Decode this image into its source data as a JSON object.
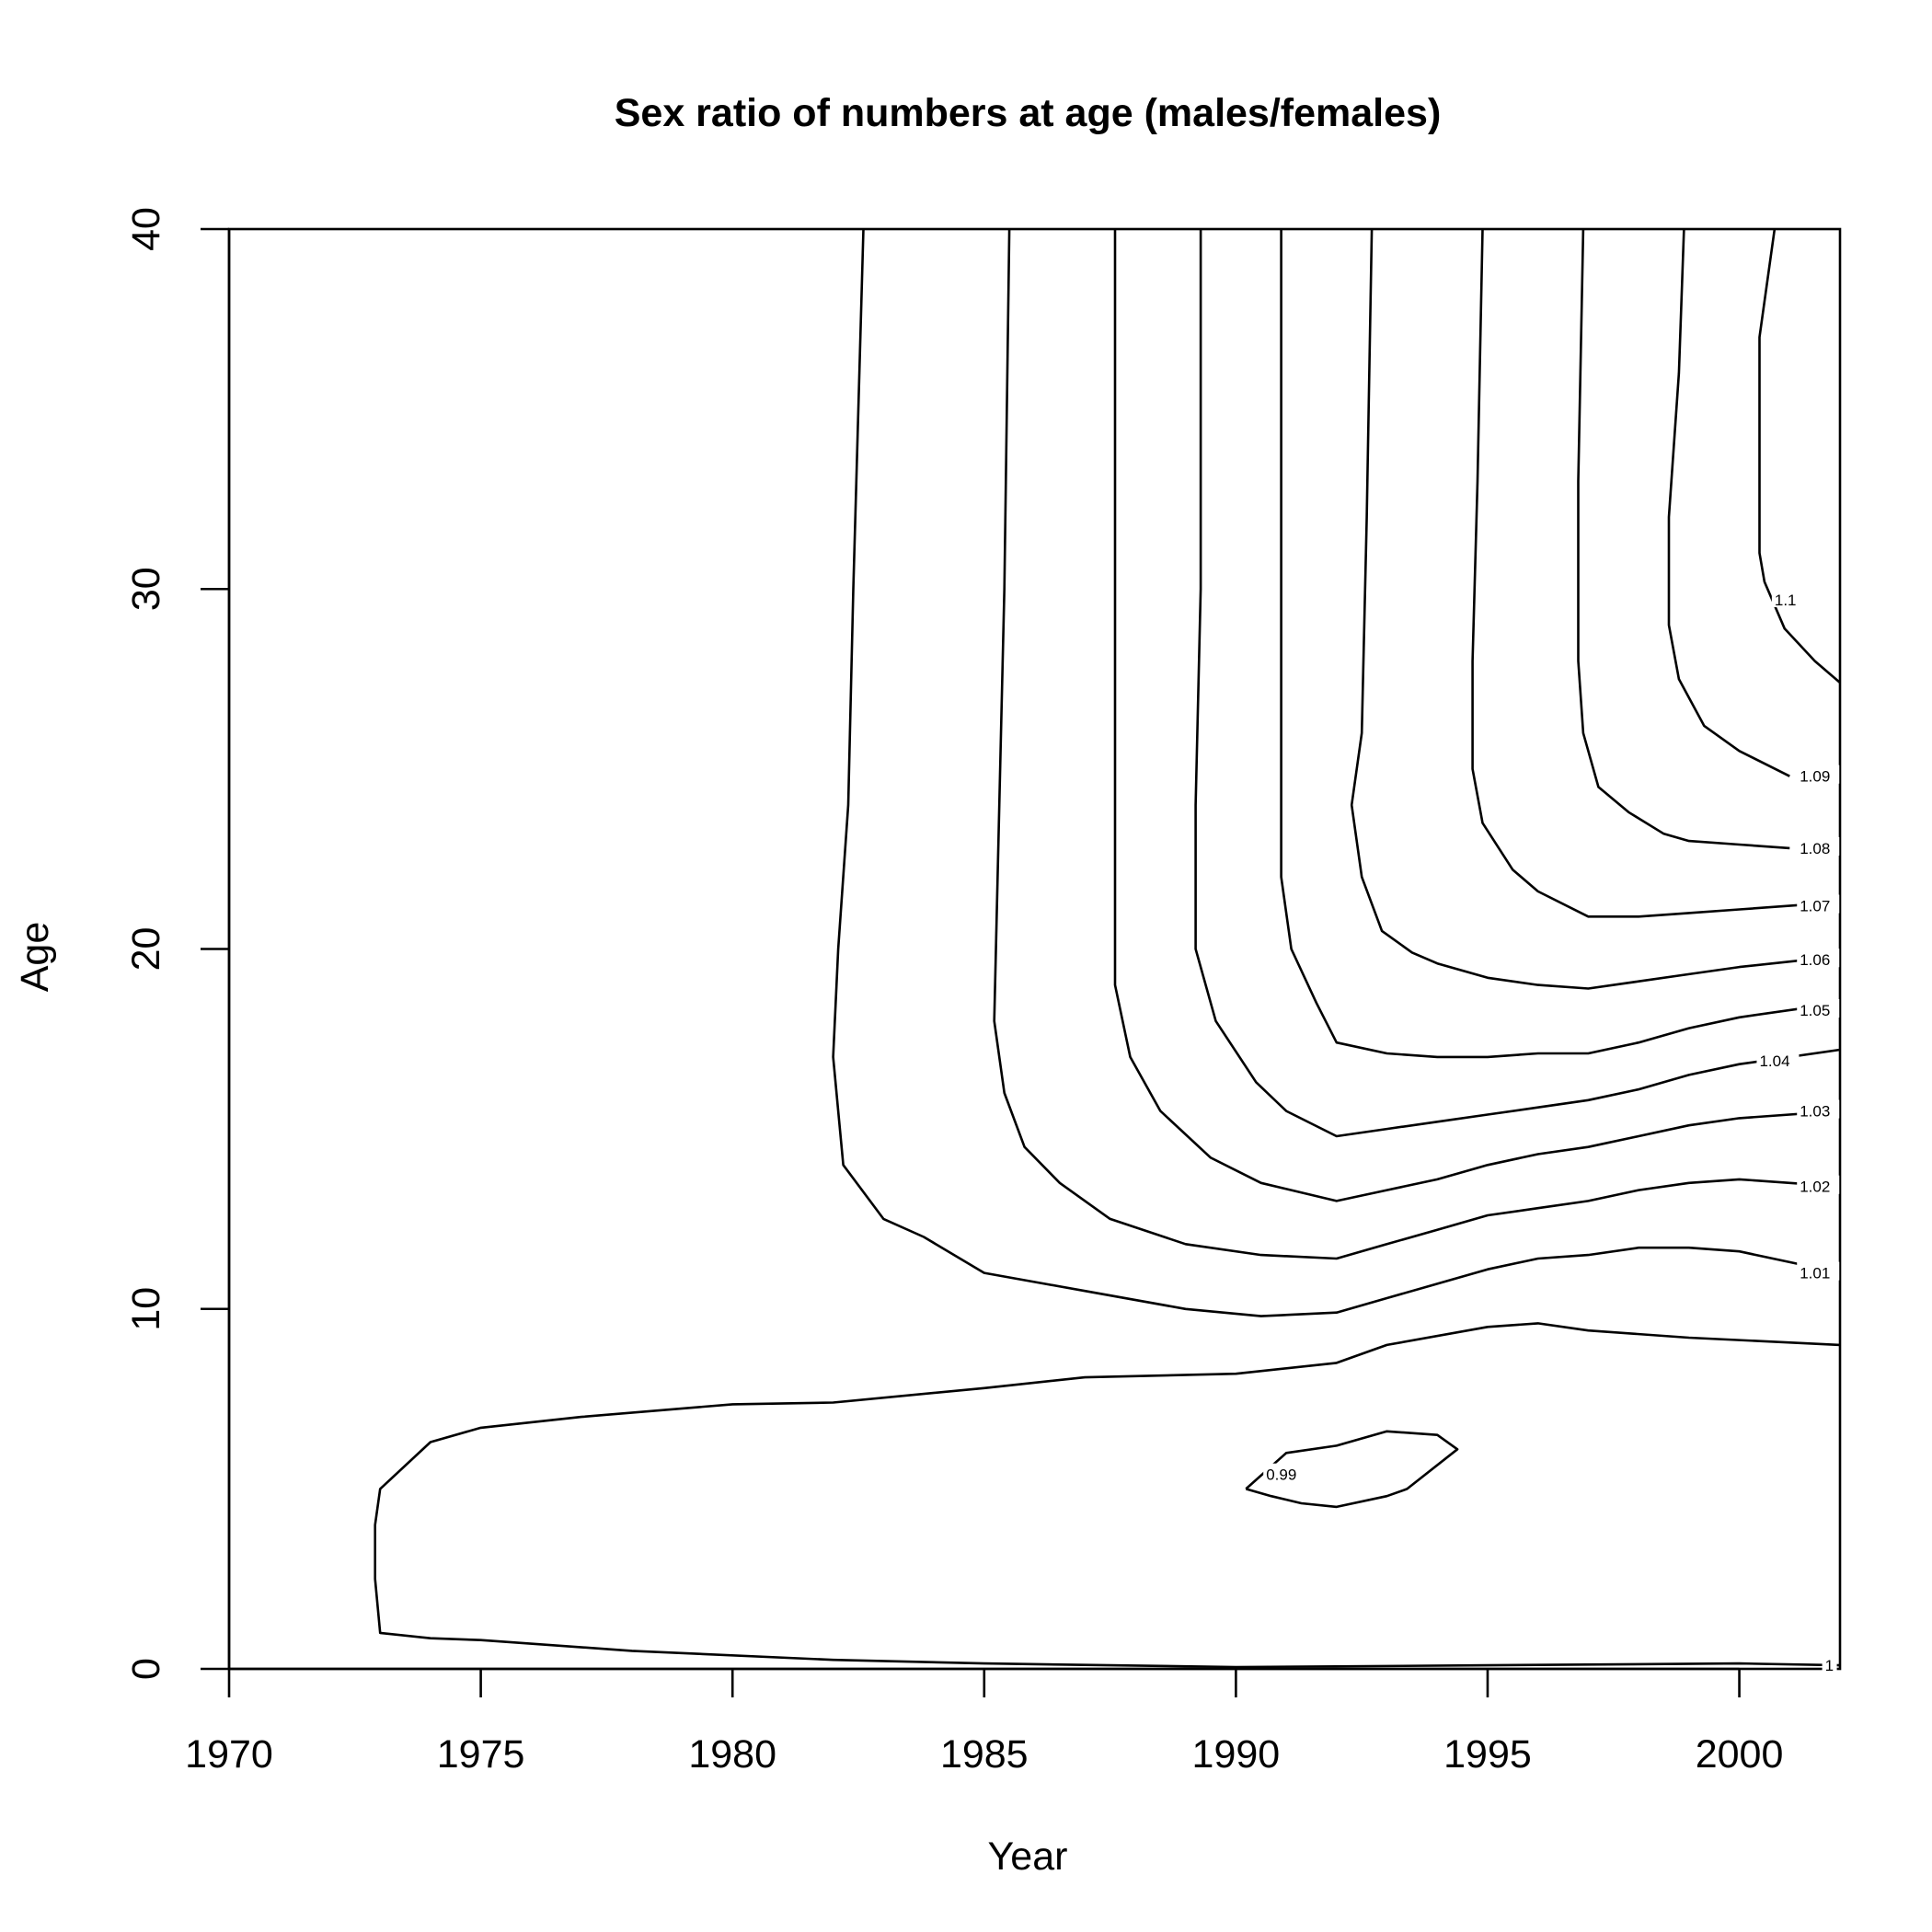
{
  "chart_data": {
    "type": "contour",
    "title": "Sex ratio of numbers at age (males/females)",
    "xlabel": "Year",
    "ylabel": "Age",
    "xlim": [
      1970,
      2002
    ],
    "ylim": [
      0,
      40
    ],
    "x_ticks": [
      1970,
      1975,
      1980,
      1985,
      1990,
      1995,
      2000
    ],
    "y_ticks": [
      0,
      10,
      20,
      30,
      40
    ],
    "contours": [
      {
        "level": "1",
        "label": "1",
        "label_at": [
          2001.7,
          0.1
        ],
        "points": [
          [
            2002,
            0.1
          ],
          [
            2000,
            0.15
          ],
          [
            1995,
            0.1
          ],
          [
            1990,
            0.05
          ],
          [
            1985,
            0.15
          ],
          [
            1982,
            0.25
          ],
          [
            1978,
            0.5
          ],
          [
            1975,
            0.8
          ],
          [
            1974,
            0.85
          ],
          [
            1973,
            1.0
          ],
          [
            1972.9,
            2.5
          ],
          [
            1972.9,
            4.0
          ],
          [
            1973,
            5.0
          ],
          [
            1974,
            6.3
          ],
          [
            1975,
            6.7
          ],
          [
            1977,
            7.0
          ],
          [
            1980,
            7.35
          ],
          [
            1982,
            7.4
          ],
          [
            1985,
            7.8
          ],
          [
            1987,
            8.1
          ],
          [
            1990,
            8.2
          ],
          [
            1992,
            8.5
          ],
          [
            1993,
            9.0
          ],
          [
            1995,
            9.5
          ],
          [
            1996,
            9.6
          ],
          [
            1997,
            9.4
          ],
          [
            1999,
            9.2
          ],
          [
            2002,
            9.0
          ]
        ]
      },
      {
        "level": "0.99",
        "label": "0.99",
        "label_at": [
          1990.6,
          5.4
        ],
        "points": [
          [
            1990.2,
            5.0
          ],
          [
            1991,
            6.0
          ],
          [
            1992,
            6.2
          ],
          [
            1993,
            6.6
          ],
          [
            1994,
            6.5
          ],
          [
            1994.4,
            6.1
          ],
          [
            1993.4,
            5.0
          ],
          [
            1993,
            4.8
          ],
          [
            1992,
            4.5
          ],
          [
            1991.3,
            4.6
          ],
          [
            1990.7,
            4.8
          ],
          [
            1990.2,
            5.0
          ]
        ]
      },
      {
        "level": "1.01",
        "label": "1.01",
        "label_at": [
          2001.2,
          11.0
        ],
        "points": [
          [
            1982.6,
            40
          ],
          [
            1982.4,
            30
          ],
          [
            1982.3,
            24
          ],
          [
            1982.1,
            20
          ],
          [
            1982.0,
            17
          ],
          [
            1982.2,
            14
          ],
          [
            1983,
            12.5
          ],
          [
            1983.8,
            12
          ],
          [
            1985,
            11
          ],
          [
            1987,
            10.5
          ],
          [
            1989,
            10.0
          ],
          [
            1990.5,
            9.8
          ],
          [
            1992,
            9.9
          ],
          [
            1993,
            10.3
          ],
          [
            1994,
            10.7
          ],
          [
            1995,
            11.1
          ],
          [
            1996,
            11.4
          ],
          [
            1997,
            11.5
          ],
          [
            1998,
            11.7
          ],
          [
            1999,
            11.7
          ],
          [
            2000,
            11.6
          ],
          [
            2001,
            11.3
          ],
          [
            2002,
            11.0
          ]
        ]
      },
      {
        "level": "1.02",
        "label": "1.02",
        "label_at": [
          2001.2,
          13.4
        ],
        "points": [
          [
            1985.5,
            40
          ],
          [
            1985.4,
            30
          ],
          [
            1985.3,
            24
          ],
          [
            1985.2,
            18
          ],
          [
            1985.4,
            16
          ],
          [
            1985.8,
            14.5
          ],
          [
            1986.5,
            13.5
          ],
          [
            1987.5,
            12.5
          ],
          [
            1989,
            11.8
          ],
          [
            1990.5,
            11.5
          ],
          [
            1992,
            11.4
          ],
          [
            1993,
            11.8
          ],
          [
            1994,
            12.2
          ],
          [
            1995,
            12.6
          ],
          [
            1996,
            12.8
          ],
          [
            1997,
            13.0
          ],
          [
            1998,
            13.3
          ],
          [
            1999,
            13.5
          ],
          [
            2000,
            13.6
          ],
          [
            2002,
            13.4
          ]
        ]
      },
      {
        "level": "1.03",
        "label": "1.03",
        "label_at": [
          2001.2,
          15.5
        ],
        "points": [
          [
            1987.6,
            40
          ],
          [
            1987.6,
            30
          ],
          [
            1987.6,
            24
          ],
          [
            1987.6,
            19
          ],
          [
            1987.9,
            17
          ],
          [
            1988.5,
            15.5
          ],
          [
            1989.5,
            14.2
          ],
          [
            1990.5,
            13.5
          ],
          [
            1992,
            13.0
          ],
          [
            1993,
            13.3
          ],
          [
            1994,
            13.6
          ],
          [
            1995,
            14.0
          ],
          [
            1996,
            14.3
          ],
          [
            1997,
            14.5
          ],
          [
            1998,
            14.8
          ],
          [
            1999,
            15.1
          ],
          [
            2000,
            15.3
          ],
          [
            2002,
            15.5
          ]
        ]
      },
      {
        "level": "1.04",
        "label": "1.04",
        "label_at": [
          2000.4,
          16.9
        ],
        "points": [
          [
            1989.3,
            40
          ],
          [
            1989.3,
            30
          ],
          [
            1989.2,
            24
          ],
          [
            1989.2,
            20
          ],
          [
            1989.6,
            18
          ],
          [
            1990.4,
            16.3
          ],
          [
            1991,
            15.5
          ],
          [
            1992,
            14.8
          ],
          [
            1993,
            15.0
          ],
          [
            1994,
            15.2
          ],
          [
            1995,
            15.4
          ],
          [
            1996,
            15.6
          ],
          [
            1997,
            15.8
          ],
          [
            1998,
            16.1
          ],
          [
            1999,
            16.5
          ],
          [
            2000,
            16.8
          ],
          [
            2001,
            17.0
          ],
          [
            2002,
            17.2
          ]
        ]
      },
      {
        "level": "1.05",
        "label": "1.05",
        "label_at": [
          2001.2,
          18.3
        ],
        "points": [
          [
            1990.9,
            40
          ],
          [
            1990.9,
            32
          ],
          [
            1990.9,
            26
          ],
          [
            1990.9,
            22
          ],
          [
            1991.1,
            20
          ],
          [
            1991.6,
            18.5
          ],
          [
            1992,
            17.4
          ],
          [
            1993,
            17.1
          ],
          [
            1994,
            17.0
          ],
          [
            1995,
            17.0
          ],
          [
            1996,
            17.1
          ],
          [
            1997,
            17.1
          ],
          [
            1998,
            17.4
          ],
          [
            1999,
            17.8
          ],
          [
            2000,
            18.1
          ],
          [
            2002,
            18.5
          ]
        ]
      },
      {
        "level": "1.06",
        "label": "1.06",
        "label_at": [
          2001.2,
          19.7
        ],
        "points": [
          [
            1992.7,
            40
          ],
          [
            1992.6,
            32
          ],
          [
            1992.5,
            26
          ],
          [
            1992.3,
            24
          ],
          [
            1992.5,
            22
          ],
          [
            1992.9,
            20.5
          ],
          [
            1993.5,
            19.9
          ],
          [
            1994,
            19.6
          ],
          [
            1995,
            19.2
          ],
          [
            1996,
            19.0
          ],
          [
            1997,
            18.9
          ],
          [
            1998,
            19.1
          ],
          [
            1999,
            19.3
          ],
          [
            2000,
            19.5
          ],
          [
            2002,
            19.8
          ]
        ]
      },
      {
        "level": "1.07",
        "label": "1.07",
        "label_at": [
          2001.2,
          21.2
        ],
        "points": [
          [
            1994.9,
            40
          ],
          [
            1994.8,
            33
          ],
          [
            1994.7,
            28
          ],
          [
            1994.7,
            25
          ],
          [
            1994.9,
            23.5
          ],
          [
            1995.5,
            22.2
          ],
          [
            1996,
            21.6
          ],
          [
            1997,
            20.9
          ],
          [
            1998,
            20.9
          ],
          [
            1999,
            21.0
          ],
          [
            2000,
            21.1
          ],
          [
            2002,
            21.3
          ]
        ]
      },
      {
        "level": "1.08",
        "label": "1.08",
        "label_at": [
          2001.2,
          22.8
        ],
        "points": [
          [
            1996.9,
            40
          ],
          [
            1996.8,
            33
          ],
          [
            1996.8,
            28
          ],
          [
            1996.9,
            26
          ],
          [
            1997.2,
            24.5
          ],
          [
            1997.8,
            23.8
          ],
          [
            1998.5,
            23.2
          ],
          [
            1999,
            23.0
          ],
          [
            2000,
            22.9
          ],
          [
            2001,
            22.8
          ]
        ]
      },
      {
        "level": "1.09",
        "label": "1.09",
        "label_at": [
          2001.2,
          24.8
        ],
        "points": [
          [
            1998.9,
            40
          ],
          [
            1998.8,
            36
          ],
          [
            1998.6,
            32
          ],
          [
            1998.6,
            29
          ],
          [
            1998.8,
            27.5
          ],
          [
            1999.3,
            26.2
          ],
          [
            2000,
            25.5
          ],
          [
            2001,
            24.8
          ]
        ]
      },
      {
        "level": "1.1",
        "label": "1.1",
        "label_at": [
          2000.7,
          29.7
        ],
        "points": [
          [
            2000.7,
            40
          ],
          [
            2000.4,
            37
          ],
          [
            2000.4,
            34
          ],
          [
            2000.4,
            31
          ],
          [
            2000.5,
            30.2
          ],
          [
            2000.9,
            28.9
          ],
          [
            2001.5,
            28.0
          ],
          [
            2002,
            27.4
          ]
        ]
      }
    ]
  }
}
